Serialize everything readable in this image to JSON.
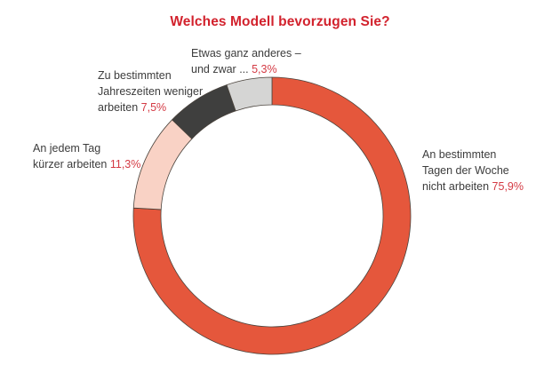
{
  "title": "Welches Modell bevorzugen Sie?",
  "colors": {
    "background": "#ffffff",
    "title_red": "#d2222d",
    "percent_red": "#d43a44",
    "label_text": "#3c3c3c",
    "slice_stroke": "#4a433c"
  },
  "chart_data": {
    "type": "pie",
    "donut": true,
    "title": "Welches Modell bevorzugen Sie?",
    "unit": "%",
    "start_angle_deg": 0,
    "direction": "clockwise",
    "legend_position": "callout-labels",
    "slices": [
      {
        "label": "An bestimmten Tagen der Woche nicht arbeiten",
        "value": 75.9,
        "display_value": "75,9%",
        "color": "#e5573c"
      },
      {
        "label": "An jedem Tag kürzer arbeiten",
        "value": 11.3,
        "display_value": "11,3%",
        "color": "#f9d2c5"
      },
      {
        "label": "Zu bestimmten Jahreszeiten weniger arbeiten",
        "value": 7.5,
        "display_value": "7,5%",
        "color": "#3f3f3e"
      },
      {
        "label": "Etwas ganz anderes – und zwar ...",
        "value": 5.3,
        "display_value": "5,3%",
        "color": "#d5d5d4"
      }
    ]
  },
  "callouts": {
    "anderes": {
      "line1": "Etwas ganz anderes –",
      "line2": "und zwar ...",
      "pct": "5,3%"
    },
    "jahreszeiten": {
      "line1": "Zu bestimmten",
      "line2": "Jahreszeiten weniger",
      "line3": "arbeiten",
      "pct": "7,5%"
    },
    "taeglich": {
      "line1": "An jedem Tag",
      "line2": "kürzer arbeiten",
      "pct": "11,3%"
    },
    "wochentage": {
      "line1": "An bestimmten",
      "line2": "Tagen der Woche",
      "line3": "nicht arbeiten",
      "pct": "75,9%"
    }
  }
}
